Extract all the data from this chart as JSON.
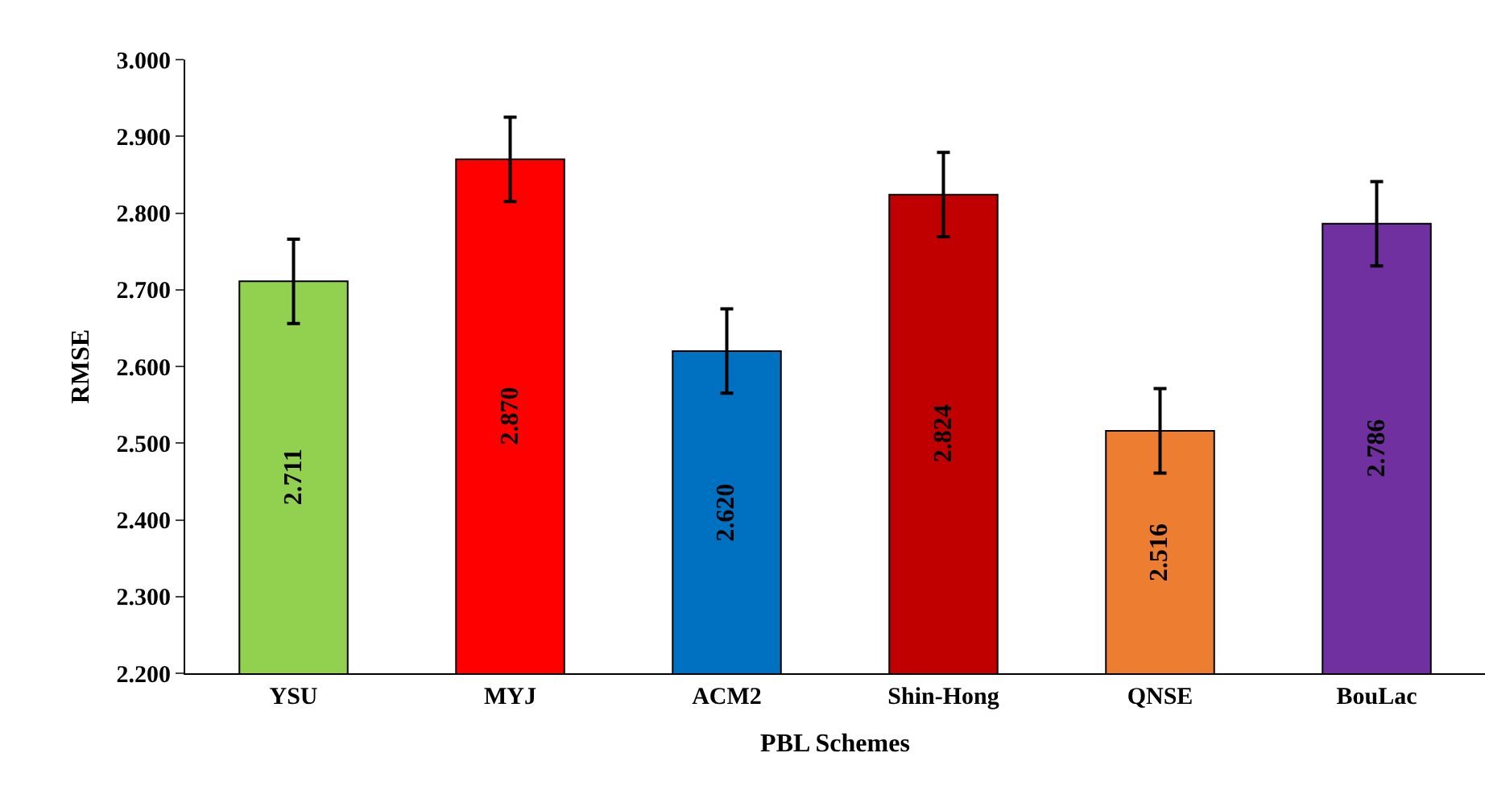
{
  "chart_data": {
    "type": "bar",
    "xlabel": "PBL Schemes",
    "ylabel": "RMSE",
    "categories": [
      "YSU",
      "MYJ",
      "ACM2",
      "Shin-Hong",
      "QNSE",
      "BouLac"
    ],
    "values": [
      2.711,
      2.87,
      2.62,
      2.824,
      2.516,
      2.786
    ],
    "colors": [
      "#92d050",
      "#ff0000",
      "#0070c0",
      "#c00000",
      "#ed7d31",
      "#7030a0"
    ],
    "errors": [
      0.055,
      0.055,
      0.055,
      0.055,
      0.055,
      0.055
    ],
    "value_labels": [
      "2.711",
      "2.870",
      "2.620",
      "2.824",
      "2.516",
      "2.786"
    ],
    "ylim": [
      2.2,
      3.0
    ],
    "yticks": [
      {
        "value": 2.2,
        "label": "2.200"
      },
      {
        "value": 2.3,
        "label": "2.300"
      },
      {
        "value": 2.4,
        "label": "2.400"
      },
      {
        "value": 2.5,
        "label": "2.500"
      },
      {
        "value": 2.6,
        "label": "2.600"
      },
      {
        "value": 2.7,
        "label": "2.700"
      },
      {
        "value": 2.8,
        "label": "2.800"
      },
      {
        "value": 2.9,
        "label": "2.900"
      },
      {
        "value": 3.0,
        "label": "3.000"
      }
    ],
    "legend": false
  }
}
